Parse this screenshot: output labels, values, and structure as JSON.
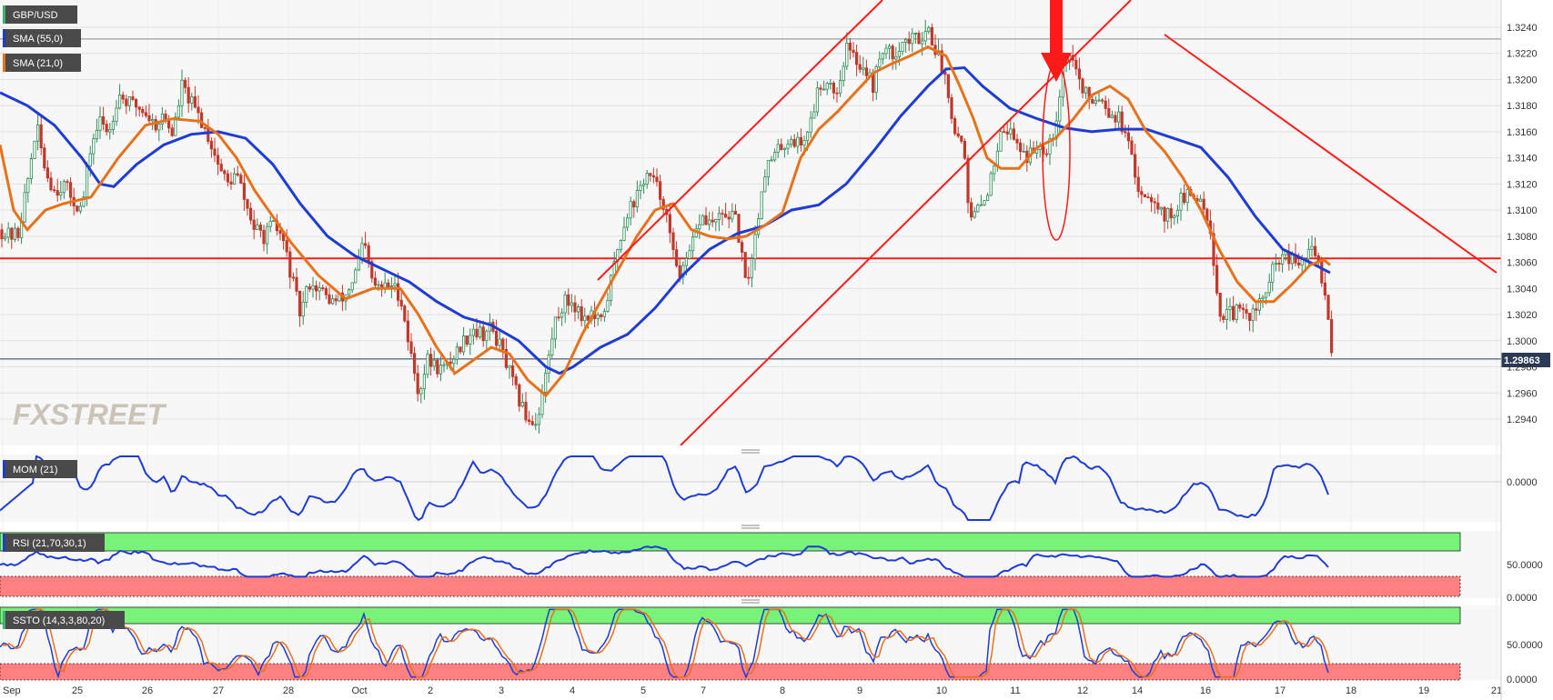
{
  "chart_data": {
    "type": "line",
    "instrument": "GBP/USD",
    "price_panel": {
      "ylim": [
        1.292,
        1.326
      ],
      "y_ticks": [
        "1.2940",
        "1.2960",
        "1.2980",
        "1.3000",
        "1.3020",
        "1.3040",
        "1.3060",
        "1.3080",
        "1.3100",
        "1.3120",
        "1.3140",
        "1.3160",
        "1.3180",
        "1.3200",
        "1.3220",
        "1.3240"
      ],
      "last_price": "1.29863",
      "last_price_value": 1.29863,
      "horizontal_levels": [
        1.3063,
        1.2986,
        1.3231
      ],
      "indicators": [
        {
          "label": "SMA (55,0)",
          "color": "#1f3bd6"
        },
        {
          "label": "SMA (21,0)",
          "color": "#e8711c"
        }
      ],
      "sma55": [
        [
          0,
          1.319
        ],
        [
          30,
          1.318
        ],
        [
          60,
          1.3165
        ],
        [
          90,
          1.314
        ],
        [
          110,
          1.312
        ],
        [
          125,
          1.3118
        ],
        [
          150,
          1.3135
        ],
        [
          180,
          1.315
        ],
        [
          210,
          1.3158
        ],
        [
          240,
          1.316
        ],
        [
          270,
          1.3155
        ],
        [
          300,
          1.3135
        ],
        [
          330,
          1.3105
        ],
        [
          360,
          1.308
        ],
        [
          390,
          1.3065
        ],
        [
          420,
          1.3055
        ],
        [
          450,
          1.3045
        ],
        [
          480,
          1.303
        ],
        [
          510,
          1.3018
        ],
        [
          540,
          1.3012
        ],
        [
          570,
          1.3
        ],
        [
          600,
          1.298
        ],
        [
          615,
          1.2975
        ],
        [
          630,
          1.298
        ],
        [
          660,
          1.2995
        ],
        [
          690,
          1.3005
        ],
        [
          720,
          1.3025
        ],
        [
          750,
          1.305
        ],
        [
          780,
          1.307
        ],
        [
          810,
          1.3082
        ],
        [
          840,
          1.3088
        ],
        [
          870,
          1.31
        ],
        [
          900,
          1.3104
        ],
        [
          930,
          1.312
        ],
        [
          960,
          1.3145
        ],
        [
          990,
          1.3172
        ],
        [
          1020,
          1.3195
        ],
        [
          1040,
          1.3208
        ],
        [
          1060,
          1.3209
        ],
        [
          1080,
          1.3195
        ],
        [
          1110,
          1.3178
        ],
        [
          1140,
          1.317
        ],
        [
          1170,
          1.3163
        ],
        [
          1200,
          1.316
        ],
        [
          1230,
          1.3162
        ],
        [
          1260,
          1.3162
        ],
        [
          1290,
          1.3155
        ],
        [
          1320,
          1.3148
        ],
        [
          1350,
          1.3125
        ],
        [
          1380,
          1.3095
        ],
        [
          1410,
          1.307
        ],
        [
          1440,
          1.306
        ],
        [
          1462,
          1.3052
        ]
      ],
      "sma21": [
        [
          0,
          1.315
        ],
        [
          15,
          1.31
        ],
        [
          30,
          1.3085
        ],
        [
          50,
          1.31
        ],
        [
          70,
          1.3105
        ],
        [
          100,
          1.311
        ],
        [
          130,
          1.314
        ],
        [
          160,
          1.3165
        ],
        [
          190,
          1.317
        ],
        [
          220,
          1.3168
        ],
        [
          240,
          1.3158
        ],
        [
          260,
          1.314
        ],
        [
          280,
          1.3115
        ],
        [
          300,
          1.3095
        ],
        [
          320,
          1.3075
        ],
        [
          350,
          1.305
        ],
        [
          380,
          1.3032
        ],
        [
          410,
          1.304
        ],
        [
          440,
          1.304
        ],
        [
          460,
          1.302
        ],
        [
          480,
          1.2995
        ],
        [
          500,
          1.2975
        ],
        [
          520,
          1.2985
        ],
        [
          540,
          1.2995
        ],
        [
          560,
          1.299
        ],
        [
          580,
          1.297
        ],
        [
          600,
          1.2958
        ],
        [
          620,
          1.2975
        ],
        [
          640,
          1.3005
        ],
        [
          660,
          1.303
        ],
        [
          680,
          1.3055
        ],
        [
          700,
          1.308
        ],
        [
          720,
          1.31
        ],
        [
          740,
          1.3105
        ],
        [
          760,
          1.3085
        ],
        [
          780,
          1.308
        ],
        [
          800,
          1.3078
        ],
        [
          820,
          1.308
        ],
        [
          840,
          1.3088
        ],
        [
          860,
          1.3098
        ],
        [
          880,
          1.314
        ],
        [
          900,
          1.3162
        ],
        [
          920,
          1.3175
        ],
        [
          940,
          1.319
        ],
        [
          960,
          1.3205
        ],
        [
          980,
          1.3212
        ],
        [
          1000,
          1.3218
        ],
        [
          1020,
          1.3225
        ],
        [
          1040,
          1.3218
        ],
        [
          1055,
          1.3195
        ],
        [
          1070,
          1.317
        ],
        [
          1085,
          1.314
        ],
        [
          1100,
          1.3132
        ],
        [
          1120,
          1.3132
        ],
        [
          1140,
          1.3148
        ],
        [
          1160,
          1.3155
        ],
        [
          1180,
          1.317
        ],
        [
          1200,
          1.3188
        ],
        [
          1220,
          1.3195
        ],
        [
          1240,
          1.3185
        ],
        [
          1260,
          1.316
        ],
        [
          1280,
          1.3145
        ],
        [
          1300,
          1.3125
        ],
        [
          1320,
          1.31
        ],
        [
          1340,
          1.307
        ],
        [
          1360,
          1.3045
        ],
        [
          1380,
          1.303
        ],
        [
          1400,
          1.303
        ],
        [
          1420,
          1.3043
        ],
        [
          1440,
          1.3058
        ],
        [
          1455,
          1.3062
        ],
        [
          1462,
          1.3058
        ]
      ],
      "price_path": [
        [
          0,
          1.3085
        ],
        [
          10,
          1.308
        ],
        [
          20,
          1.3082
        ],
        [
          30,
          1.312
        ],
        [
          40,
          1.3165
        ],
        [
          50,
          1.313
        ],
        [
          60,
          1.3115
        ],
        [
          70,
          1.312
        ],
        [
          80,
          1.3108
        ],
        [
          90,
          1.31
        ],
        [
          100,
          1.315
        ],
        [
          110,
          1.3168
        ],
        [
          120,
          1.316
        ],
        [
          130,
          1.319
        ],
        [
          140,
          1.3182
        ],
        [
          150,
          1.318
        ],
        [
          160,
          1.3175
        ],
        [
          170,
          1.3165
        ],
        [
          180,
          1.3172
        ],
        [
          190,
          1.3158
        ],
        [
          200,
          1.3195
        ],
        [
          210,
          1.3182
        ],
        [
          220,
          1.317
        ],
        [
          230,
          1.3155
        ],
        [
          240,
          1.3135
        ],
        [
          250,
          1.312
        ],
        [
          260,
          1.3128
        ],
        [
          270,
          1.3105
        ],
        [
          280,
          1.3085
        ],
        [
          290,
          1.308
        ],
        [
          300,
          1.3088
        ],
        [
          310,
          1.308
        ],
        [
          320,
          1.305
        ],
        [
          330,
          1.302
        ],
        [
          340,
          1.3045
        ],
        [
          350,
          1.304
        ],
        [
          360,
          1.3032
        ],
        [
          370,
          1.303
        ],
        [
          380,
          1.3035
        ],
        [
          390,
          1.305
        ],
        [
          400,
          1.3075
        ],
        [
          410,
          1.3042
        ],
        [
          420,
          1.304
        ],
        [
          430,
          1.3043
        ],
        [
          440,
          1.3035
        ],
        [
          450,
          1.2995
        ],
        [
          460,
          1.296
        ],
        [
          470,
          1.2985
        ],
        [
          480,
          1.298
        ],
        [
          490,
          1.2978
        ],
        [
          500,
          1.299
        ],
        [
          510,
          1.3
        ],
        [
          520,
          1.301
        ],
        [
          530,
          1.3005
        ],
        [
          540,
          1.301
        ],
        [
          550,
          1.2995
        ],
        [
          560,
          1.2975
        ],
        [
          570,
          1.2955
        ],
        [
          580,
          1.294
        ],
        [
          590,
          1.2938
        ],
        [
          600,
          1.2975
        ],
        [
          610,
          1.3015
        ],
        [
          620,
          1.303
        ],
        [
          630,
          1.303
        ],
        [
          640,
          1.3018
        ],
        [
          650,
          1.302
        ],
        [
          660,
          1.3012
        ],
        [
          670,
          1.304
        ],
        [
          680,
          1.3075
        ],
        [
          690,
          1.31
        ],
        [
          700,
          1.311
        ],
        [
          710,
          1.3128
        ],
        [
          720,
          1.312
        ],
        [
          730,
          1.3105
        ],
        [
          740,
          1.3065
        ],
        [
          750,
          1.305
        ],
        [
          760,
          1.307
        ],
        [
          770,
          1.3095
        ],
        [
          780,
          1.309
        ],
        [
          790,
          1.3092
        ],
        [
          800,
          1.3098
        ],
        [
          810,
          1.309
        ],
        [
          820,
          1.304
        ],
        [
          830,
          1.308
        ],
        [
          840,
          1.313
        ],
        [
          850,
          1.314
        ],
        [
          860,
          1.315
        ],
        [
          870,
          1.3155
        ],
        [
          880,
          1.315
        ],
        [
          890,
          1.3165
        ],
        [
          900,
          1.3195
        ],
        [
          910,
          1.32
        ],
        [
          920,
          1.319
        ],
        [
          930,
          1.3225
        ],
        [
          940,
          1.3215
        ],
        [
          950,
          1.321
        ],
        [
          960,
          1.3195
        ],
        [
          970,
          1.3225
        ],
        [
          980,
          1.3218
        ],
        [
          990,
          1.3228
        ],
        [
          1000,
          1.323
        ],
        [
          1010,
          1.3232
        ],
        [
          1020,
          1.324
        ],
        [
          1030,
          1.322
        ],
        [
          1040,
          1.32
        ],
        [
          1050,
          1.316
        ],
        [
          1060,
          1.315
        ],
        [
          1065,
          1.309
        ],
        [
          1070,
          1.3095
        ],
        [
          1080,
          1.3105
        ],
        [
          1090,
          1.3125
        ],
        [
          1100,
          1.3165
        ],
        [
          1110,
          1.316
        ],
        [
          1120,
          1.315
        ],
        [
          1130,
          1.314
        ],
        [
          1140,
          1.315
        ],
        [
          1150,
          1.3148
        ],
        [
          1160,
          1.3165
        ],
        [
          1170,
          1.3218
        ],
        [
          1180,
          1.3215
        ],
        [
          1190,
          1.319
        ],
        [
          1200,
          1.3185
        ],
        [
          1210,
          1.3188
        ],
        [
          1220,
          1.3175
        ],
        [
          1230,
          1.317
        ],
        [
          1240,
          1.315
        ],
        [
          1250,
          1.3118
        ],
        [
          1260,
          1.3112
        ],
        [
          1270,
          1.311
        ],
        [
          1280,
          1.3095
        ],
        [
          1290,
          1.3098
        ],
        [
          1300,
          1.311
        ],
        [
          1310,
          1.311
        ],
        [
          1320,
          1.311
        ],
        [
          1330,
          1.309
        ],
        [
          1340,
          1.302
        ],
        [
          1350,
          1.302
        ],
        [
          1360,
          1.3022
        ],
        [
          1370,
          1.302
        ],
        [
          1380,
          1.3022
        ],
        [
          1390,
          1.3035
        ],
        [
          1400,
          1.3055
        ],
        [
          1410,
          1.3065
        ],
        [
          1420,
          1.306
        ],
        [
          1430,
          1.3058
        ],
        [
          1440,
          1.307
        ],
        [
          1450,
          1.306
        ],
        [
          1455,
          1.304
        ],
        [
          1460,
          1.302
        ],
        [
          1465,
          1.2986
        ]
      ]
    },
    "momentum_panel": {
      "label": "MOM (21)",
      "y_ticks": [
        "0.0000"
      ],
      "ylim": [
        -0.0065,
        0.005
      ]
    },
    "rsi_panel": {
      "label": "RSI (21,70,30,1)",
      "y_ticks": [
        "50.0000",
        "0.0000"
      ],
      "ylim": [
        0,
        100
      ],
      "overbought": 70,
      "oversold": 30
    },
    "stoch_panel": {
      "label": "SSTO (14,3,3,80,20)",
      "y_ticks": [
        "50.0000",
        "0.0000"
      ],
      "ylim": [
        0,
        100
      ],
      "overbought": 80,
      "oversold": 20
    },
    "x_ticks": [
      "Sep",
      "25",
      "26",
      "27",
      "28",
      "Oct",
      "2",
      "3",
      "4",
      "5",
      "7",
      "8",
      "9",
      "10",
      "11",
      "12",
      "14",
      "16",
      "17",
      "18",
      "19",
      "21"
    ],
    "colors": {
      "sma55": "#1f3bd6",
      "sma21": "#e8711c",
      "up_candle": "#2e8b57",
      "down_candle": "#c0392b",
      "trendline": "#ff1a1a",
      "overbought_zone": "#78f278",
      "oversold_zone": "#ff8080"
    },
    "watermark": "FXSTREET"
  }
}
